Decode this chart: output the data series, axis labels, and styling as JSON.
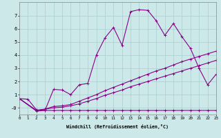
{
  "xlabel": "Windchill (Refroidissement éolien,°C)",
  "bg_color": "#cce8e8",
  "grid_color": "#a8cece",
  "line_color": "#880088",
  "line1": {
    "x": [
      0,
      1,
      2,
      3,
      4,
      5,
      6,
      7,
      8,
      9,
      10,
      11,
      12,
      13,
      14,
      15,
      16,
      17,
      18,
      19,
      20,
      21,
      22,
      23
    ],
    "y": [
      0.7,
      0.65,
      -0.15,
      -0.2,
      -0.2,
      -0.2,
      -0.2,
      -0.2,
      -0.2,
      -0.2,
      -0.2,
      -0.2,
      -0.2,
      -0.2,
      -0.2,
      -0.2,
      -0.2,
      -0.2,
      -0.2,
      -0.2,
      -0.2,
      -0.2,
      -0.2,
      -0.2
    ]
  },
  "line2": {
    "x": [
      0,
      2,
      3,
      4,
      5,
      6,
      7,
      8,
      9,
      10,
      11,
      12,
      13,
      14,
      15,
      16,
      17,
      18,
      19,
      20,
      21,
      22,
      23
    ],
    "y": [
      0.7,
      -0.25,
      -0.2,
      1.4,
      1.35,
      1.0,
      1.75,
      1.85,
      4.0,
      5.3,
      6.1,
      4.75,
      7.3,
      7.45,
      7.4,
      6.6,
      5.5,
      6.4,
      5.4,
      4.5,
      3.0,
      1.75,
      2.55
    ]
  },
  "line3": {
    "x": [
      0,
      2,
      3,
      4,
      5,
      6,
      7,
      8,
      9,
      10,
      11,
      12,
      13,
      14,
      15,
      16,
      17,
      18,
      19,
      20,
      21,
      22,
      23
    ],
    "y": [
      0.7,
      -0.2,
      -0.1,
      0.1,
      0.15,
      0.25,
      0.5,
      0.75,
      1.0,
      1.3,
      1.55,
      1.8,
      2.05,
      2.3,
      2.55,
      2.8,
      3.0,
      3.25,
      3.5,
      3.7,
      3.9,
      4.1,
      4.3
    ]
  },
  "line4": {
    "x": [
      0,
      2,
      3,
      4,
      5,
      6,
      7,
      8,
      9,
      10,
      11,
      12,
      13,
      14,
      15,
      16,
      17,
      18,
      19,
      20,
      21,
      22,
      23
    ],
    "y": [
      0.7,
      -0.2,
      -0.1,
      0.0,
      0.05,
      0.15,
      0.3,
      0.5,
      0.7,
      0.95,
      1.15,
      1.35,
      1.6,
      1.8,
      2.0,
      2.2,
      2.4,
      2.6,
      2.8,
      3.0,
      3.2,
      3.4,
      3.6
    ]
  },
  "xlim": [
    0,
    23
  ],
  "ylim": [
    -0.5,
    8.0
  ],
  "yticks": [
    0,
    1,
    2,
    3,
    4,
    5,
    6,
    7
  ],
  "ytick_labels": [
    "-0",
    "1",
    "2",
    "3",
    "4",
    "5",
    "6",
    "7"
  ],
  "xticks": [
    0,
    1,
    2,
    3,
    4,
    5,
    6,
    7,
    8,
    9,
    10,
    11,
    12,
    13,
    14,
    15,
    16,
    17,
    18,
    19,
    20,
    21,
    22,
    23
  ]
}
